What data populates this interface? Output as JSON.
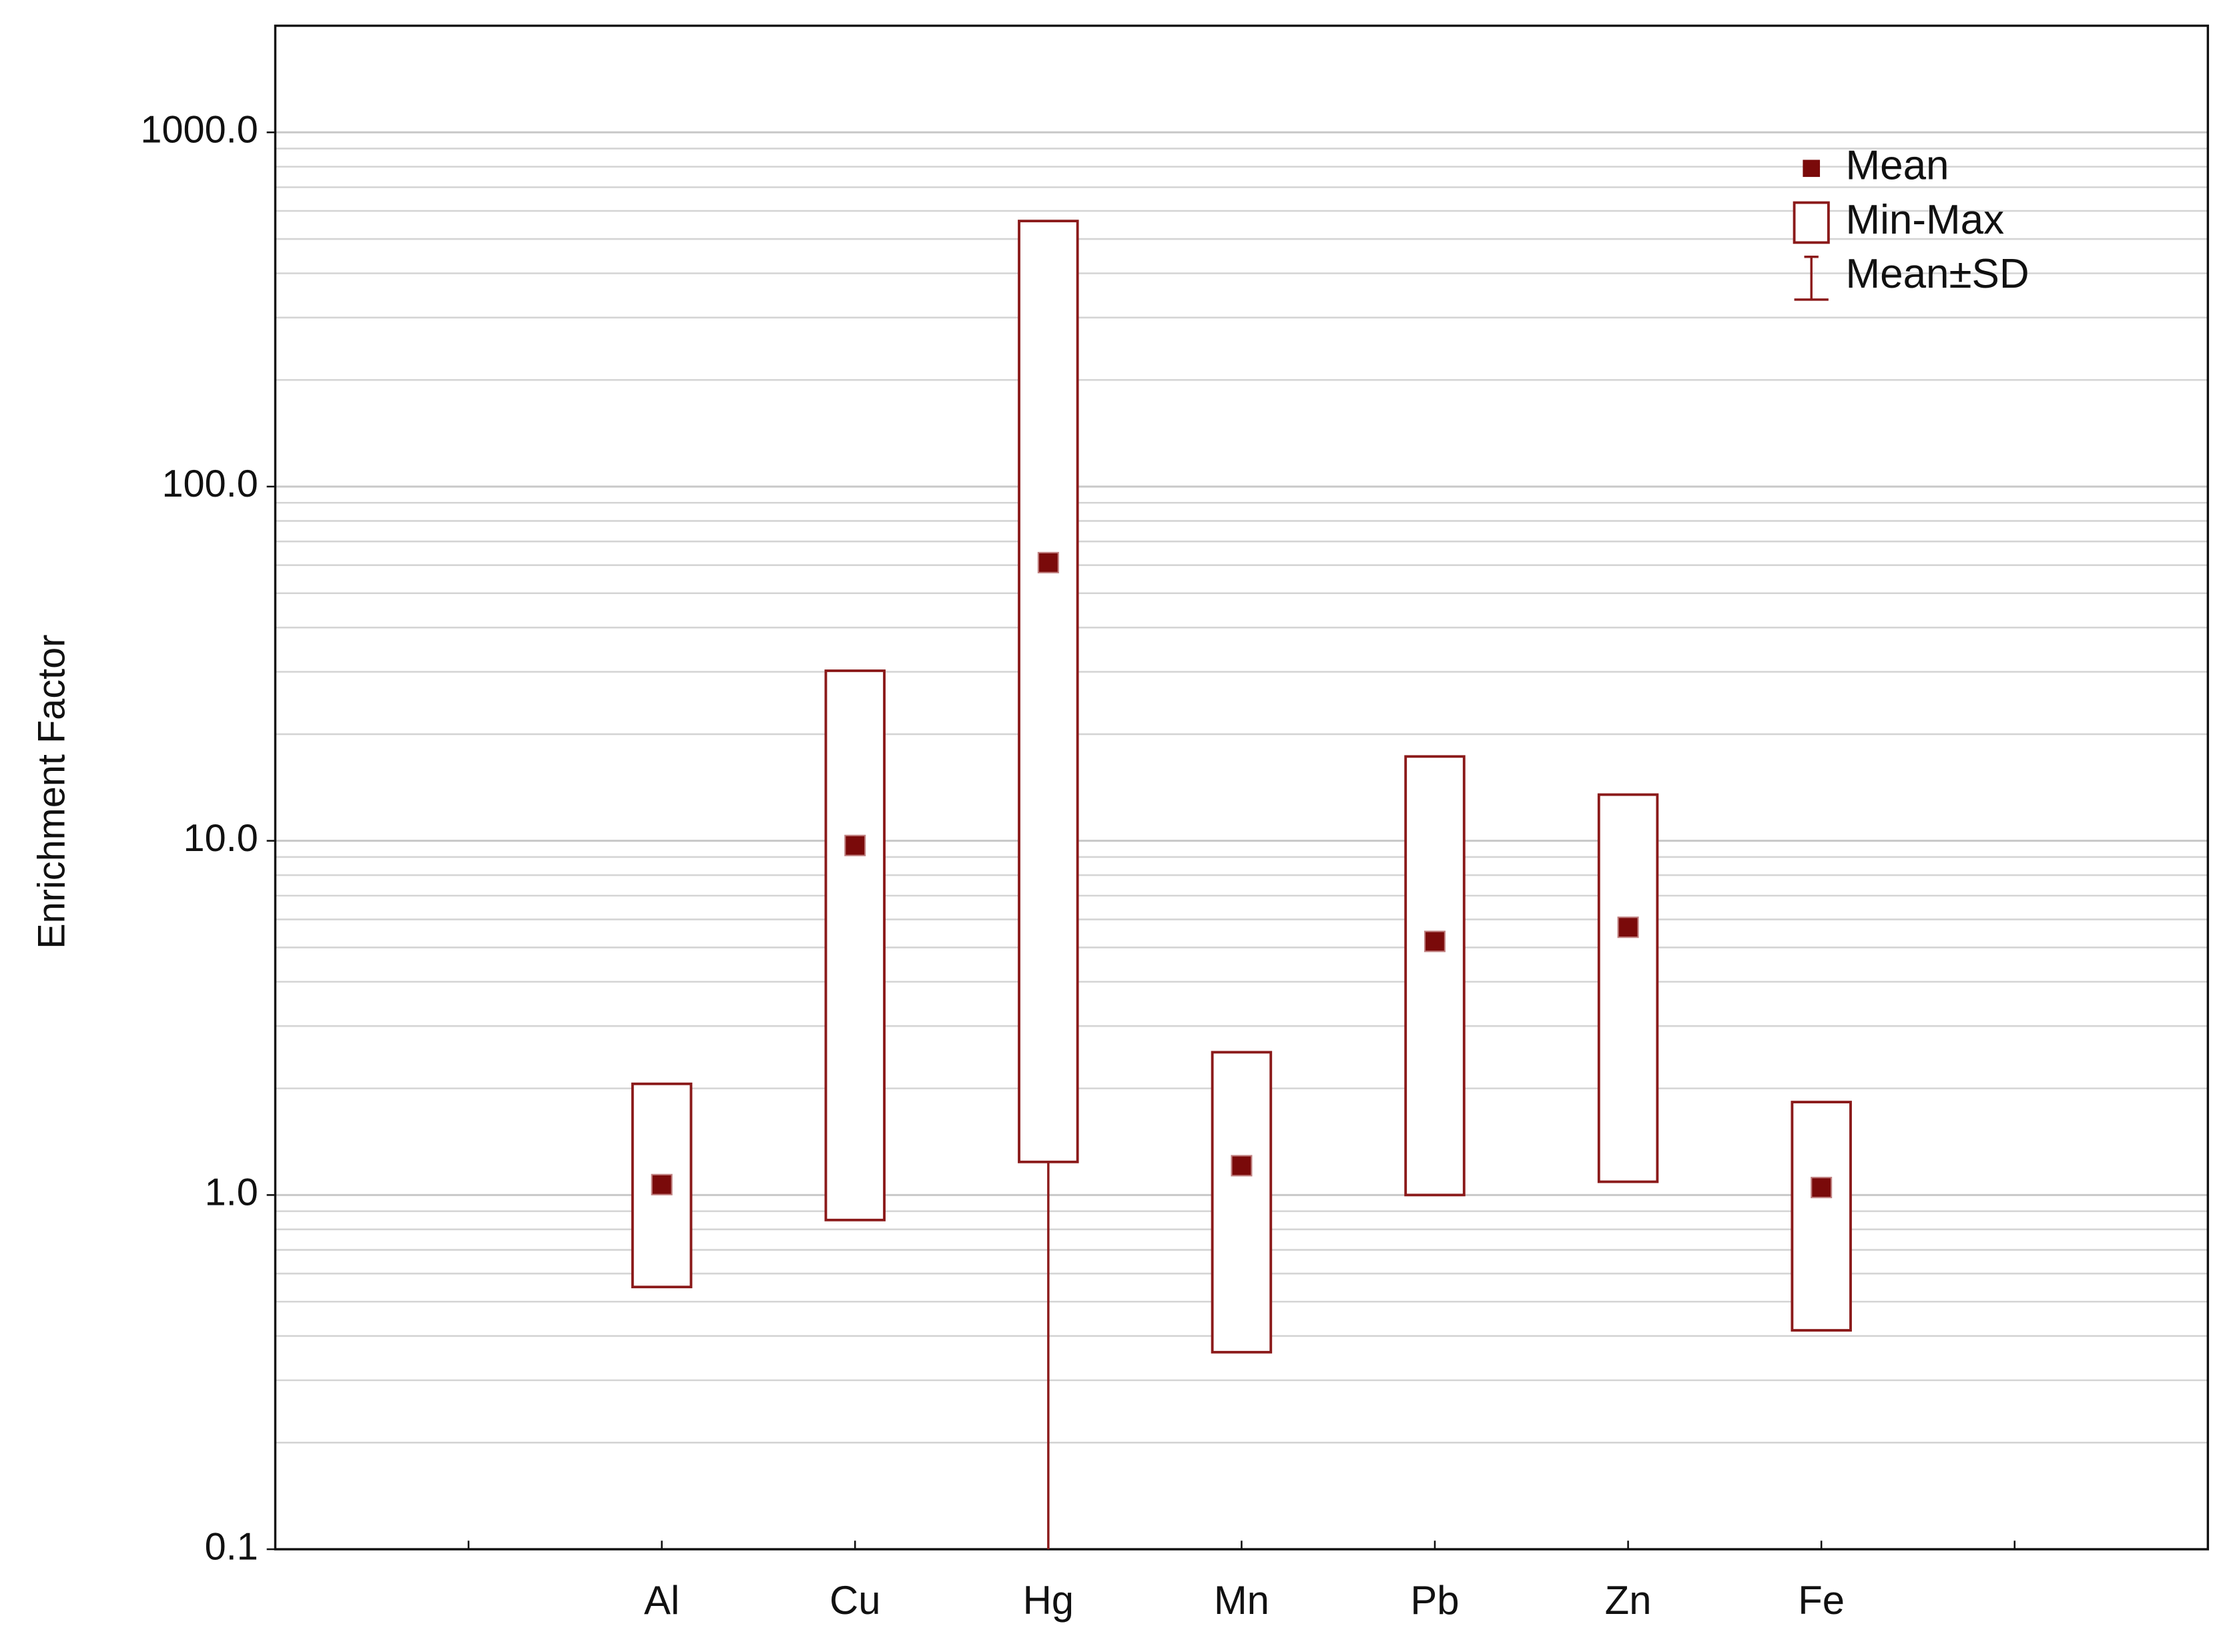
{
  "chart_data": {
    "type": "range_box",
    "y_label": "Enrichment Factor",
    "categories": [
      null,
      "Al",
      "Cu",
      "Hg",
      "Mn",
      "Pb",
      "Zn",
      "Fe",
      null
    ],
    "series": [
      {
        "name": "Mean",
        "color": "#7a0a0a",
        "values": [
          null,
          1.07,
          9.7,
          61,
          1.21,
          5.2,
          5.7,
          1.05,
          null
        ]
      },
      {
        "name": "Min-Max",
        "color": "#8b1a1a",
        "min": [
          null,
          0.55,
          0.85,
          1.24,
          0.36,
          1.0,
          1.09,
          0.415,
          null
        ],
        "max": [
          null,
          2.06,
          30.2,
          562,
          2.53,
          17.3,
          13.5,
          1.83,
          null
        ]
      },
      {
        "name": "Mean±SD",
        "color": "#8b1a1a",
        "lower": [
          null,
          null,
          null,
          0.1,
          null,
          null,
          null,
          null,
          null
        ]
      }
    ],
    "log_y": true,
    "ylim": [
      0.1,
      2000
    ],
    "yticks": [
      0.1,
      {
        "value": 1,
        "label": "1.0"
      },
      {
        "value": 10,
        "label": "10.0"
      },
      {
        "value": 100,
        "label": "100.0"
      },
      {
        "value": 1000,
        "label": "1000.0"
      }
    ],
    "yminor": [
      0.2,
      0.3,
      0.4,
      0.5,
      0.6,
      0.7,
      0.8,
      0.9,
      2,
      3,
      4,
      5,
      6,
      7,
      8,
      9,
      20,
      30,
      40,
      50,
      60,
      70,
      80,
      90,
      200,
      300,
      400,
      500,
      600,
      700,
      800,
      900
    ],
    "grid": true,
    "legend": "top-right"
  }
}
